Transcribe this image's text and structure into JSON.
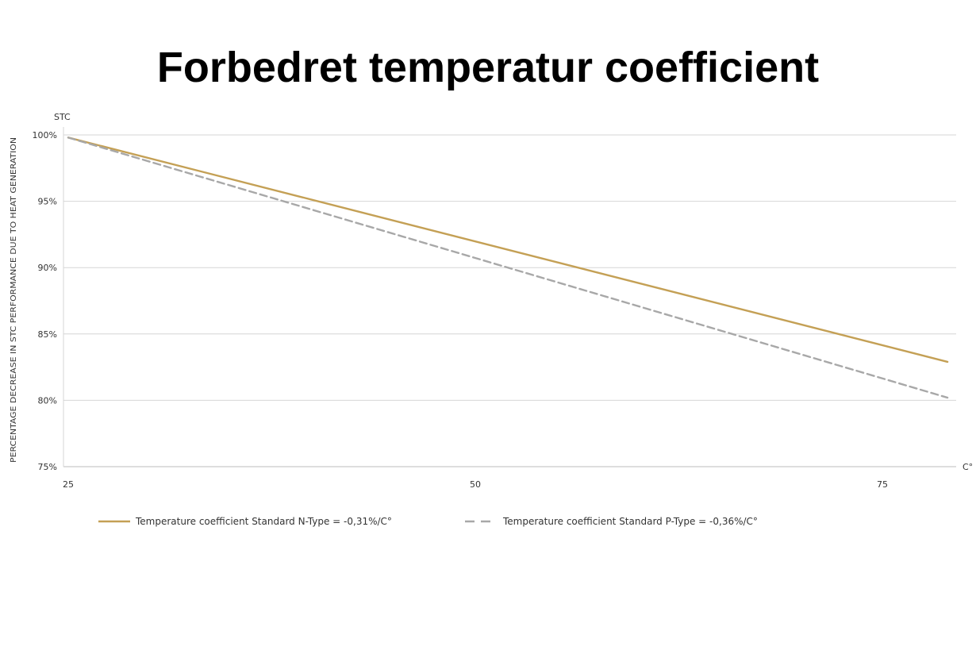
{
  "page": {
    "title": "Forbedret temperatur coefficient"
  },
  "chart_data": {
    "type": "line",
    "title": "Forbedret temperatur coefficient",
    "xlabel": "C°",
    "ylabel": "PERCENTAGE DECREASE IN STC PERFORMANCE DUE TO HEAT GENERATION",
    "y_top_label": "STC",
    "xlim": [
      25,
      79
    ],
    "ylim": [
      75,
      100
    ],
    "x_ticks": [
      25,
      50,
      75
    ],
    "x_tick_labels": [
      "25",
      "50",
      "75"
    ],
    "y_ticks": [
      100,
      95,
      90,
      85,
      80,
      75
    ],
    "y_tick_labels": [
      "100%",
      "95%",
      "90%",
      "85%",
      "80%",
      "75%"
    ],
    "grid": true,
    "legend_position": "bottom",
    "series": [
      {
        "name": "Temperature coefficient Standard N-Type = -0,31%/C°",
        "style": "solid",
        "color": "#C4A055",
        "x": [
          25,
          79
        ],
        "y": [
          99.8,
          82.9
        ]
      },
      {
        "name": "Temperature coefficient Standard P-Type = -0,36%/C°",
        "style": "dashed",
        "color": "#A8A8A8",
        "x": [
          25,
          79
        ],
        "y": [
          99.8,
          80.2
        ]
      }
    ]
  }
}
